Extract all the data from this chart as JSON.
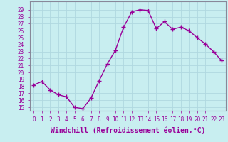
{
  "x": [
    0,
    1,
    2,
    3,
    4,
    5,
    6,
    7,
    8,
    9,
    10,
    11,
    12,
    13,
    14,
    15,
    16,
    17,
    18,
    19,
    20,
    21,
    22,
    23
  ],
  "y": [
    18.2,
    18.7,
    17.5,
    16.8,
    16.5,
    15.0,
    14.8,
    16.3,
    18.8,
    21.2,
    23.2,
    26.5,
    28.7,
    29.0,
    28.9,
    26.3,
    27.3,
    26.2,
    26.5,
    26.0,
    25.0,
    24.1,
    23.0,
    21.7
  ],
  "line_color": "#990099",
  "marker": "+",
  "markersize": 4,
  "linewidth": 1.0,
  "xlabel": "Windchill (Refroidissement éolien,°C)",
  "xlabel_fontsize": 7,
  "ylim": [
    14.5,
    30.2
  ],
  "yticks": [
    15,
    16,
    17,
    18,
    19,
    20,
    21,
    22,
    23,
    24,
    25,
    26,
    27,
    28,
    29
  ],
  "xticks": [
    0,
    1,
    2,
    3,
    4,
    5,
    6,
    7,
    8,
    9,
    10,
    11,
    12,
    13,
    14,
    15,
    16,
    17,
    18,
    19,
    20,
    21,
    22,
    23
  ],
  "xtick_labels": [
    "0",
    "1",
    "2",
    "3",
    "4",
    "5",
    "6",
    "7",
    "8",
    "9",
    "10",
    "11",
    "12",
    "13",
    "14",
    "15",
    "16",
    "17",
    "18",
    "19",
    "20",
    "21",
    "22",
    "23"
  ],
  "background_color": "#c8eef0",
  "grid_color": "#b0d8e0",
  "tick_fontsize": 5.5,
  "border_color": "#888899"
}
